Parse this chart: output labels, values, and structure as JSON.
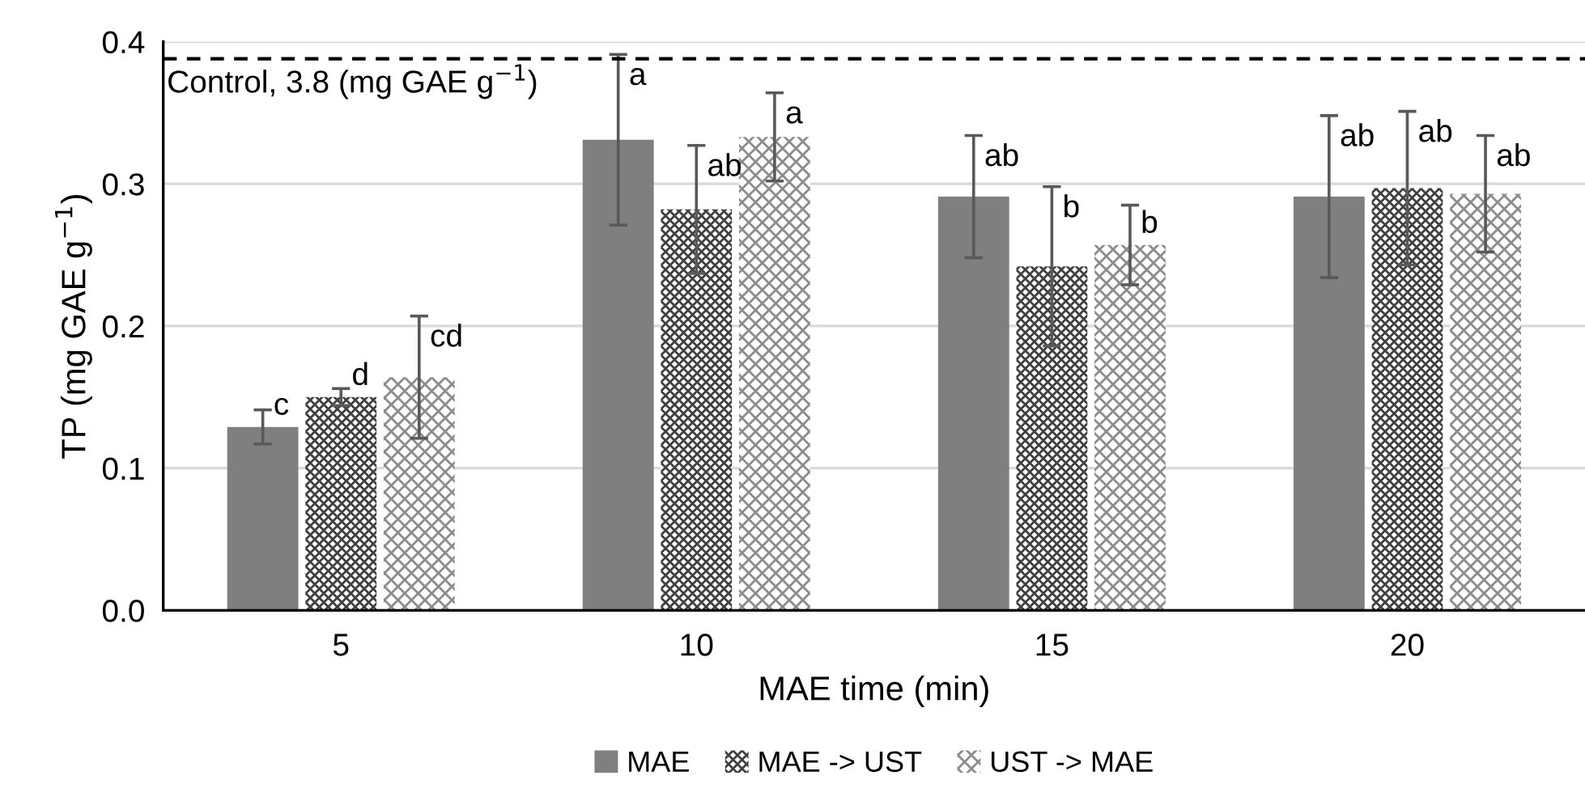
{
  "chart_data": {
    "type": "bar",
    "xlabel": "MAE time (min)",
    "ylabel": "TP (mg GAE g$^{−1}$)",
    "categories": [
      "5",
      "10",
      "15",
      "20"
    ],
    "series": [
      {
        "name": "MAE",
        "color": "#7f7f7f",
        "values": [
          0.129,
          0.331,
          0.291,
          0.291
        ],
        "errors": [
          0.012,
          0.06,
          0.043,
          0.057
        ],
        "value_labels": [
          "c",
          "a",
          "ab",
          "ab"
        ]
      },
      {
        "name": "MAE -> UST",
        "color": "#404040",
        "values": [
          0.15,
          0.282,
          0.242,
          0.297
        ],
        "errors": [
          0.006,
          0.045,
          0.056,
          0.054
        ],
        "value_labels": [
          "d",
          "ab",
          "b",
          "ab"
        ]
      },
      {
        "name": "UST -> MAE",
        "color": "#8c8c8c",
        "values": [
          0.164,
          0.333,
          0.257,
          0.293
        ],
        "errors": [
          0.043,
          0.031,
          0.028,
          0.041
        ],
        "value_labels": [
          "cd",
          "a",
          "b",
          "ab"
        ]
      }
    ],
    "ylim": [
      0,
      0.4
    ],
    "yticks": [
      {
        "value": 0,
        "label": "0.0"
      },
      0.1,
      0.2,
      0.3,
      0.4
    ],
    "ref_lines": [
      {
        "axis": "y",
        "value": 0.388,
        "label": "Control, 3.8 (mg GAE g$^{−1}$)",
        "color": "#000000",
        "line_style": "dashed"
      }
    ],
    "grid": "y",
    "legend": "bottom"
  }
}
